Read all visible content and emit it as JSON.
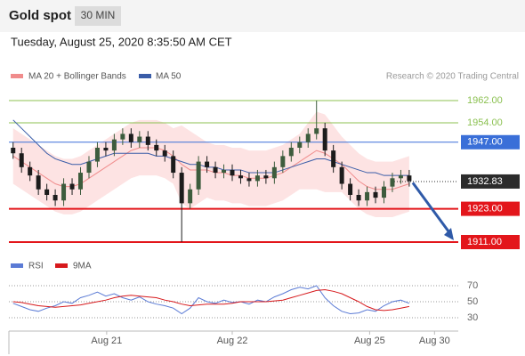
{
  "chart_data": {
    "type": "candlestick",
    "title": "Gold spot",
    "interval": "30 MIN",
    "timestamp": "Tuesday, August 25, 2020 8:35:50 AM CET",
    "credit": "Research © 2020 Trading Central",
    "up_color": "#3d5c3d",
    "down_color": "#1c1c1c",
    "ylim": [
      1911,
      1962
    ],
    "xlim": [
      -0.5,
      52.5
    ],
    "xticks": [
      {
        "value": 11.1,
        "label": "Aug 21"
      },
      {
        "value": 26.0,
        "label": "Aug 22"
      },
      {
        "value": 42.3,
        "label": "Aug 25"
      },
      {
        "value": 50.0,
        "label": "Aug 30"
      }
    ],
    "open": [
      1945,
      1943,
      1938,
      1935,
      1930,
      1928,
      1926,
      1932,
      1930,
      1936,
      1940,
      1945,
      1944,
      1948,
      1950,
      1947,
      1949,
      1946,
      1944,
      1942,
      1936,
      1925,
      1930,
      1940,
      1938,
      1936,
      1937,
      1935,
      1934,
      1933,
      1935,
      1934,
      1938,
      1942,
      1945,
      1947,
      1950,
      1952,
      1944,
      1938,
      1932,
      1928,
      1926,
      1929,
      1927,
      1931,
      1934,
      1935
    ],
    "high": [
      1947,
      1945,
      1940,
      1937,
      1932,
      1930,
      1934,
      1934,
      1938,
      1942,
      1947,
      1947,
      1950,
      1952,
      1952,
      1951,
      1951,
      1948,
      1946,
      1944,
      1938,
      1932,
      1942,
      1942,
      1940,
      1939,
      1939,
      1937,
      1936,
      1937,
      1937,
      1940,
      1944,
      1947,
      1949,
      1952,
      1962,
      1954,
      1946,
      1940,
      1934,
      1930,
      1931,
      1931,
      1933,
      1936,
      1937,
      1937
    ],
    "low": [
      1941,
      1936,
      1933,
      1928,
      1926,
      1924,
      1924,
      1928,
      1928,
      1934,
      1938,
      1942,
      1942,
      1946,
      1945,
      1945,
      1944,
      1942,
      1940,
      1934,
      1911,
      1923,
      1928,
      1936,
      1934,
      1934,
      1933,
      1932,
      1931,
      1931,
      1932,
      1932,
      1936,
      1940,
      1943,
      1945,
      1948,
      1942,
      1936,
      1930,
      1926,
      1924,
      1924,
      1925,
      1925,
      1929,
      1932,
      1931
    ],
    "close": [
      1943,
      1938,
      1935,
      1930,
      1928,
      1926,
      1932,
      1930,
      1936,
      1940,
      1945,
      1944,
      1948,
      1950,
      1947,
      1949,
      1946,
      1944,
      1942,
      1936,
      1925,
      1930,
      1940,
      1938,
      1936,
      1937,
      1935,
      1934,
      1933,
      1935,
      1934,
      1938,
      1942,
      1945,
      1947,
      1950,
      1952,
      1944,
      1938,
      1932,
      1928,
      1926,
      1929,
      1927,
      1931,
      1934,
      1935,
      1933
    ],
    "bands": {
      "name": "MA 20 + Bollinger Bands",
      "color": "#f08c8c",
      "fill": "#fde3e3",
      "upper": [
        1952,
        1950,
        1948,
        1946,
        1944,
        1942,
        1941,
        1941,
        1942,
        1944,
        1946,
        1948,
        1950,
        1952,
        1954,
        1955,
        1955,
        1955,
        1954,
        1952,
        1953,
        1951,
        1949,
        1947,
        1946,
        1946,
        1945,
        1945,
        1944,
        1944,
        1944,
        1945,
        1946,
        1948,
        1950,
        1954,
        1958,
        1957,
        1953,
        1949,
        1946,
        1943,
        1941,
        1940,
        1940,
        1940,
        1941,
        1942
      ],
      "values": [
        1942,
        1940,
        1938,
        1936,
        1934,
        1932,
        1931,
        1931,
        1932,
        1934,
        1936,
        1938,
        1940,
        1942,
        1944,
        1945,
        1945,
        1945,
        1944,
        1942,
        1939,
        1937,
        1937,
        1937,
        1936,
        1936,
        1935,
        1935,
        1934,
        1934,
        1934,
        1935,
        1936,
        1938,
        1940,
        1942,
        1944,
        1943,
        1941,
        1939,
        1936,
        1933,
        1931,
        1930,
        1930,
        1930,
        1931,
        1932
      ],
      "lower": [
        1932,
        1930,
        1928,
        1926,
        1924,
        1922,
        1921,
        1921,
        1922,
        1924,
        1926,
        1928,
        1930,
        1932,
        1934,
        1935,
        1935,
        1935,
        1934,
        1932,
        1925,
        1923,
        1925,
        1927,
        1926,
        1926,
        1925,
        1925,
        1924,
        1924,
        1924,
        1925,
        1926,
        1928,
        1930,
        1930,
        1930,
        1929,
        1929,
        1929,
        1926,
        1923,
        1921,
        1920,
        1920,
        1920,
        1921,
        1922
      ]
    },
    "ma50": {
      "name": "MA 50",
      "color": "#3a5da8",
      "values": [
        1955,
        1952,
        1949,
        1946,
        1943,
        1941,
        1940,
        1939,
        1939,
        1940,
        1941,
        1942,
        1943,
        1943,
        1943,
        1943,
        1943,
        1942,
        1942,
        1941,
        1940,
        1939,
        1939,
        1938,
        1938,
        1937,
        1937,
        1937,
        1936,
        1936,
        1936,
        1936,
        1937,
        1938,
        1939,
        1940,
        1941,
        1941,
        1940,
        1939,
        1938,
        1937,
        1936,
        1936,
        1935,
        1935,
        1935,
        1935
      ]
    },
    "levels": [
      {
        "value": 1962,
        "label": "1962.00",
        "color": "#8cc152",
        "style": "thin"
      },
      {
        "value": 1954,
        "label": "1954.00",
        "color": "#8cc152",
        "style": "thin"
      },
      {
        "value": 1947,
        "label": "1947.00",
        "color": "#3a6fd8",
        "style": "box"
      },
      {
        "value": 1932.83,
        "color": "#2b2b2b",
        "style": "dotted"
      },
      {
        "value": 1923,
        "label": "1923.00",
        "color": "#e3161b",
        "style": "box"
      },
      {
        "value": 1911,
        "label": "1911.00",
        "color": "#e3161b",
        "style": "box"
      }
    ],
    "rsi": {
      "ylim": [
        20,
        80
      ],
      "yticks": [
        70,
        50,
        30
      ],
      "series": [
        {
          "name": "RSI",
          "color": "#5b7bd5",
          "values": [
            48,
            44,
            40,
            38,
            42,
            45,
            50,
            48,
            55,
            58,
            62,
            57,
            60,
            55,
            52,
            56,
            50,
            47,
            45,
            42,
            35,
            42,
            55,
            50,
            48,
            52,
            49,
            50,
            47,
            52,
            50,
            56,
            60,
            65,
            68,
            66,
            70,
            55,
            45,
            38,
            35,
            36,
            40,
            38,
            45,
            50,
            52,
            48
          ]
        },
        {
          "name": "9MA",
          "color": "#d7191c",
          "values": [
            50,
            49,
            47,
            45,
            44,
            43,
            44,
            45,
            46,
            48,
            50,
            52,
            55,
            57,
            58,
            57,
            56,
            55,
            52,
            50,
            47,
            45,
            46,
            47,
            47,
            47,
            48,
            50,
            50,
            50,
            50,
            51,
            52,
            55,
            58,
            61,
            64,
            65,
            63,
            60,
            55,
            50,
            44,
            40,
            39,
            40,
            42,
            44
          ]
        }
      ]
    }
  }
}
